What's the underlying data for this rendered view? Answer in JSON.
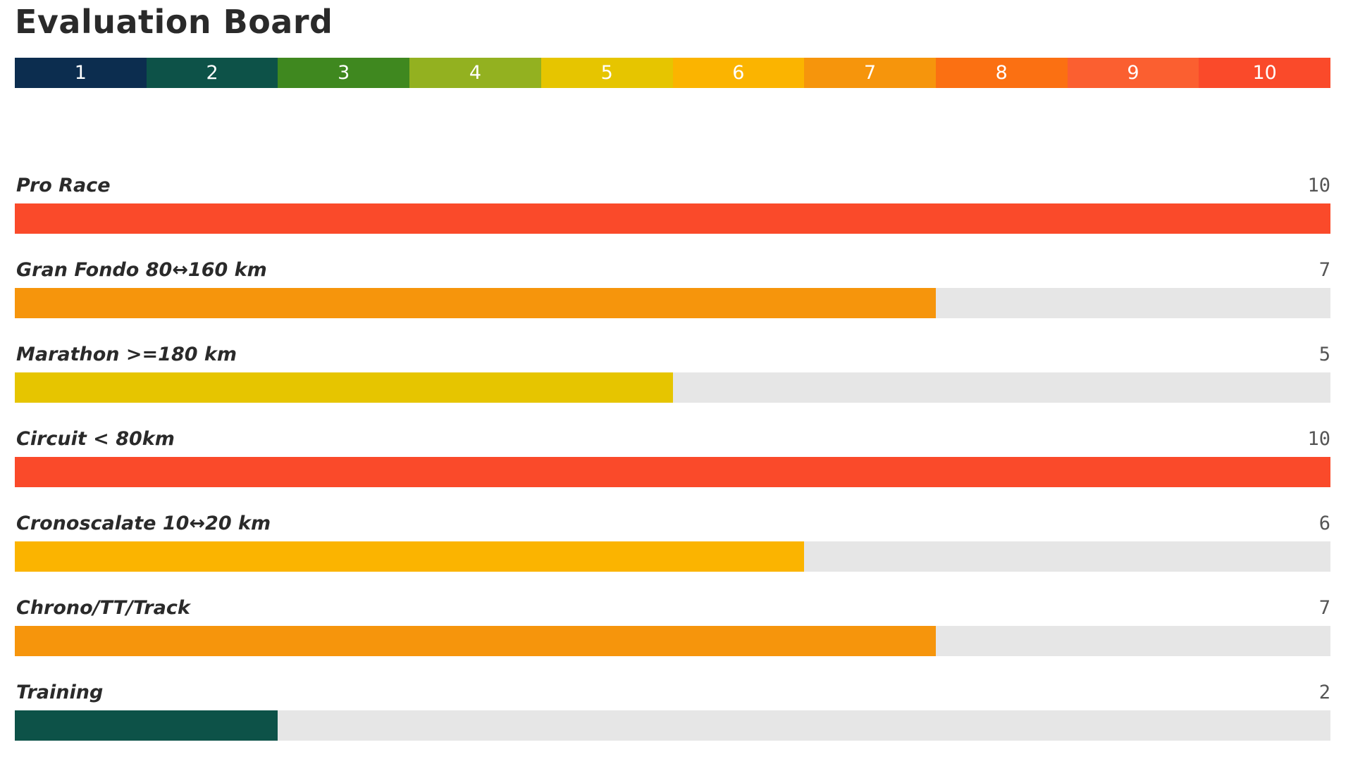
{
  "title": "Evaluation Board",
  "scale": [
    {
      "label": "1",
      "color": "#0c2d4f"
    },
    {
      "label": "2",
      "color": "#0d5248"
    },
    {
      "label": "3",
      "color": "#3f881f"
    },
    {
      "label": "4",
      "color": "#93b120"
    },
    {
      "label": "5",
      "color": "#e6c500"
    },
    {
      "label": "6",
      "color": "#fbb400"
    },
    {
      "label": "7",
      "color": "#f6950c"
    },
    {
      "label": "8",
      "color": "#fb7012"
    },
    {
      "label": "9",
      "color": "#fb5f30"
    },
    {
      "label": "10",
      "color": "#fa4a2a"
    }
  ],
  "chart_data": {
    "type": "bar",
    "orientation": "horizontal",
    "categories": [
      "Pro Race",
      "Gran Fondo 80↔160 km",
      "Marathon >=180 km",
      "Circuit < 80km",
      "Cronoscalate 10↔20 km",
      "Chrono/TT/Track",
      "Training"
    ],
    "values": [
      10,
      7,
      5,
      10,
      6,
      7,
      2
    ],
    "xlim": [
      0,
      10
    ],
    "title": "Evaluation Board",
    "xlabel": "",
    "ylabel": "",
    "grid": false,
    "track_color": "#e6e6e6"
  }
}
